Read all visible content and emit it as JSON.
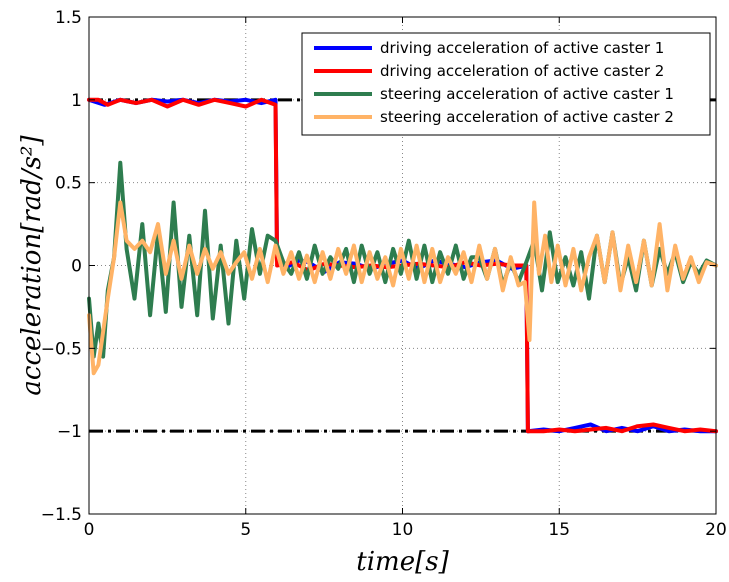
{
  "chart_data": {
    "type": "line",
    "title": "",
    "xlabel": "time[s]",
    "ylabel": "acceleration[rad/s²]",
    "xlim": [
      0,
      20
    ],
    "ylim": [
      -1.5,
      1.5
    ],
    "xticks": [
      0,
      5,
      10,
      15,
      20
    ],
    "yticks": [
      -1.5,
      -1,
      -0.5,
      0,
      0.5,
      1,
      1.5
    ],
    "xtick_labels": [
      "0",
      "5",
      "10",
      "15",
      "20"
    ],
    "ytick_labels": [
      "−1.5",
      "−1",
      "−0.5",
      "0",
      "0.5",
      "1",
      "1.5"
    ],
    "grid": true,
    "legend_position": "top-right",
    "reference_lines": [
      {
        "y": 1,
        "style": "dash-dot",
        "color": "#000000"
      },
      {
        "y": -1,
        "style": "dash-dot",
        "color": "#000000"
      }
    ],
    "series": [
      {
        "name": "driving acceleration of active caster 1",
        "color": "#0000ff",
        "x": [
          0,
          0.5,
          1.0,
          1.5,
          2.0,
          2.5,
          3.0,
          3.5,
          4.0,
          4.5,
          5.0,
          5.5,
          5.95,
          6.0,
          6.3,
          6.7,
          7.0,
          7.5,
          8.0,
          8.5,
          9.0,
          9.5,
          10.0,
          10.5,
          11.0,
          11.5,
          12.0,
          12.5,
          13.0,
          13.5,
          13.95,
          14.0,
          14.5,
          15.0,
          15.5,
          16.0,
          16.5,
          17.0,
          17.5,
          18.0,
          18.5,
          19.0,
          19.5,
          20.0
        ],
        "y": [
          1.0,
          0.97,
          1.0,
          0.98,
          1.0,
          0.99,
          1.0,
          0.98,
          1.0,
          0.99,
          1.0,
          0.98,
          1.0,
          0.03,
          -0.01,
          0.03,
          0.02,
          -0.04,
          0.02,
          0.01,
          -0.02,
          0.01,
          0.03,
          -0.02,
          0.03,
          0.01,
          -0.01,
          0.02,
          0.03,
          -0.02,
          0.0,
          -1.0,
          -0.99,
          -1.0,
          -0.98,
          -0.96,
          -1.0,
          -0.98,
          -1.0,
          -0.97,
          -1.0,
          -0.99,
          -1.0,
          -1.0
        ]
      },
      {
        "name": "driving acceleration of active caster 2",
        "color": "#ff0000",
        "x": [
          0,
          0.3,
          0.6,
          1.0,
          1.5,
          2.0,
          2.5,
          3.0,
          3.5,
          4.0,
          4.5,
          5.0,
          5.5,
          5.95,
          6.0,
          6.5,
          7.0,
          7.5,
          8.0,
          8.5,
          9.0,
          9.5,
          10.0,
          10.5,
          11.0,
          11.5,
          12.0,
          12.5,
          13.0,
          13.5,
          13.95,
          14.0,
          14.5,
          15.0,
          15.5,
          16.0,
          16.5,
          17.0,
          17.5,
          18.0,
          18.5,
          19.0,
          19.5,
          20.0
        ],
        "y": [
          1.0,
          1.0,
          0.97,
          1.0,
          0.98,
          1.0,
          0.96,
          1.0,
          0.97,
          1.0,
          0.98,
          0.96,
          1.0,
          0.97,
          0.0,
          0.02,
          -0.03,
          0.01,
          0.0,
          -0.01,
          0.0,
          -0.01,
          0.0,
          0.01,
          0.0,
          -0.01,
          0.02,
          0.0,
          0.01,
          0.0,
          0.0,
          -1.0,
          -1.0,
          -0.99,
          -1.0,
          -0.99,
          -0.98,
          -1.0,
          -0.97,
          -0.96,
          -0.98,
          -1.0,
          -0.99,
          -1.0
        ]
      },
      {
        "name": "steering acceleration of active caster 1",
        "color": "#2e7d4f",
        "x": [
          0,
          0.15,
          0.3,
          0.45,
          0.6,
          0.8,
          1.0,
          1.2,
          1.45,
          1.7,
          1.95,
          2.2,
          2.45,
          2.7,
          2.95,
          3.2,
          3.45,
          3.7,
          3.95,
          4.2,
          4.45,
          4.7,
          4.95,
          5.2,
          5.45,
          5.7,
          5.95,
          6.2,
          6.45,
          6.7,
          6.95,
          7.2,
          7.45,
          7.7,
          7.95,
          8.2,
          8.45,
          8.7,
          8.95,
          9.2,
          9.45,
          9.7,
          9.95,
          10.2,
          10.45,
          10.7,
          10.95,
          11.2,
          11.45,
          11.7,
          11.95,
          12.2,
          12.45,
          12.7,
          12.95,
          13.2,
          13.45,
          13.7,
          13.95,
          14.2,
          14.45,
          14.7,
          14.95,
          15.2,
          15.45,
          15.7,
          15.95,
          16.2,
          16.45,
          16.7,
          16.95,
          17.2,
          17.45,
          17.7,
          17.95,
          18.2,
          18.45,
          18.7,
          18.95,
          19.2,
          19.45,
          19.7,
          20.0
        ],
        "y": [
          -0.2,
          -0.55,
          -0.35,
          -0.55,
          -0.15,
          0.05,
          0.62,
          0.1,
          -0.2,
          0.25,
          -0.3,
          0.2,
          -0.28,
          0.38,
          -0.25,
          0.18,
          -0.3,
          0.33,
          -0.32,
          0.12,
          -0.35,
          0.15,
          -0.2,
          0.22,
          -0.05,
          0.18,
          0.15,
          0.02,
          -0.05,
          0.08,
          -0.08,
          0.12,
          -0.05,
          0.05,
          -0.02,
          0.1,
          -0.1,
          0.12,
          -0.05,
          0.08,
          -0.1,
          0.1,
          -0.05,
          0.15,
          -0.08,
          0.12,
          -0.1,
          0.08,
          -0.05,
          0.12,
          -0.08,
          0.05,
          0.05,
          -0.08,
          0.1,
          -0.12,
          0.02,
          -0.1,
          0.02,
          0.15,
          -0.15,
          0.2,
          -0.1,
          0.05,
          -0.12,
          0.08,
          -0.2,
          0.18,
          -0.1,
          0.2,
          -0.12,
          0.05,
          -0.15,
          0.15,
          -0.12,
          0.1,
          -0.05,
          0.08,
          -0.1,
          0.02,
          -0.05,
          0.03,
          0.0
        ]
      },
      {
        "name": "steering acceleration of active caster 2",
        "color": "#ffb366",
        "x": [
          0,
          0.15,
          0.3,
          0.45,
          0.6,
          0.8,
          1.0,
          1.2,
          1.45,
          1.7,
          1.95,
          2.2,
          2.45,
          2.7,
          2.95,
          3.2,
          3.45,
          3.7,
          3.95,
          4.2,
          4.45,
          4.7,
          4.95,
          5.2,
          5.45,
          5.7,
          5.95,
          6.2,
          6.45,
          6.7,
          6.95,
          7.2,
          7.45,
          7.7,
          7.95,
          8.2,
          8.45,
          8.7,
          8.95,
          9.2,
          9.45,
          9.7,
          9.95,
          10.2,
          10.45,
          10.7,
          10.95,
          11.2,
          11.45,
          11.7,
          11.95,
          12.2,
          12.45,
          12.7,
          12.95,
          13.2,
          13.45,
          13.7,
          13.9,
          14.05,
          14.2,
          14.35,
          14.55,
          14.75,
          14.95,
          15.2,
          15.45,
          15.7,
          15.95,
          16.2,
          16.45,
          16.7,
          16.95,
          17.2,
          17.45,
          17.7,
          17.95,
          18.2,
          18.45,
          18.7,
          18.95,
          19.2,
          19.45,
          19.7,
          20.0
        ],
        "y": [
          -0.3,
          -0.65,
          -0.6,
          -0.4,
          -0.2,
          0.05,
          0.38,
          0.15,
          0.1,
          0.15,
          0.08,
          0.25,
          -0.05,
          0.15,
          -0.08,
          0.12,
          -0.05,
          0.1,
          -0.02,
          0.08,
          -0.05,
          0.02,
          0.08,
          -0.08,
          0.1,
          -0.1,
          0.12,
          -0.05,
          0.08,
          -0.08,
          0.06,
          -0.1,
          0.08,
          -0.08,
          0.1,
          -0.05,
          0.12,
          -0.1,
          0.08,
          -0.08,
          0.05,
          -0.12,
          0.1,
          -0.08,
          0.12,
          -0.1,
          0.1,
          -0.1,
          0.05,
          -0.05,
          0.08,
          -0.1,
          0.12,
          -0.08,
          0.1,
          -0.15,
          0.05,
          -0.12,
          -0.1,
          -0.45,
          0.38,
          -0.05,
          0.18,
          -0.1,
          0.12,
          -0.12,
          0.1,
          -0.15,
          0.05,
          0.18,
          -0.1,
          0.2,
          -0.15,
          0.12,
          -0.1,
          0.15,
          -0.12,
          0.25,
          -0.15,
          0.12,
          -0.08,
          0.05,
          -0.1,
          0.02,
          0.0
        ]
      }
    ]
  }
}
